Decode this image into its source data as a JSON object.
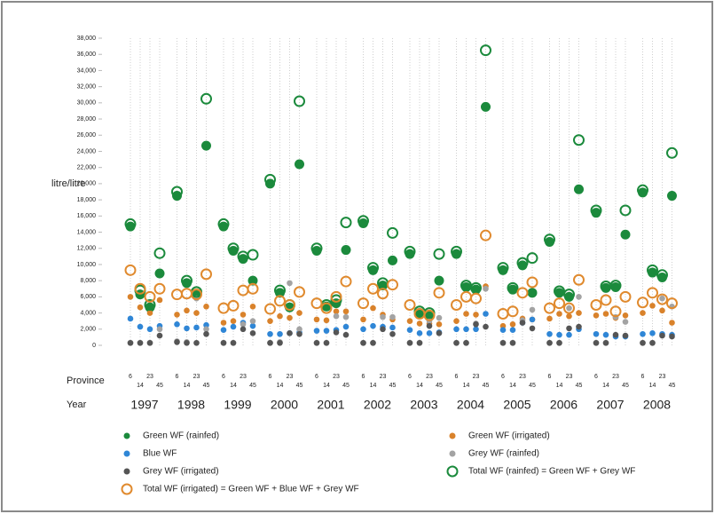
{
  "chart_data": {
    "type": "scatter",
    "y_label": "litre/litre",
    "row_labels": [
      "Province",
      "Year"
    ],
    "years": [
      "1997",
      "1998",
      "1999",
      "2000",
      "2001",
      "2002",
      "2003",
      "2004",
      "2005",
      "2006",
      "2007",
      "2008"
    ],
    "provinces": [
      "6",
      "14",
      "23",
      "45"
    ],
    "ylim": [
      0,
      38000
    ],
    "yticks": [
      0,
      {
        "value": 2000,
        "label": "2,000"
      },
      {
        "value": 4000,
        "label": "4,000"
      },
      {
        "value": 6000,
        "label": "6,000"
      },
      {
        "value": 8000,
        "label": "8,000"
      },
      {
        "value": 10000,
        "label": "10,000"
      },
      {
        "value": 12000,
        "label": "12,000"
      },
      {
        "value": 14000,
        "label": "14,000"
      },
      {
        "value": 16000,
        "label": "16,000"
      },
      {
        "value": 18000,
        "label": "18,000"
      },
      {
        "value": 20000,
        "label": "20,000"
      },
      {
        "value": 22000,
        "label": "22,000"
      },
      {
        "value": 24000,
        "label": "24,000"
      },
      {
        "value": 26000,
        "label": "26,000"
      },
      {
        "value": 28000,
        "label": "28,000"
      },
      {
        "value": 30000,
        "label": "30,000"
      },
      {
        "value": 32000,
        "label": "32,000"
      },
      {
        "value": 34000,
        "label": "34,000"
      },
      {
        "value": 36000,
        "label": "36,000"
      },
      {
        "value": 38000,
        "label": "38,000"
      }
    ],
    "series": [
      {
        "name": "Green WF (rainfed)",
        "color": "#1b8a3c",
        "filled": true,
        "values": [
          14700,
          6300,
          4700,
          8900,
          18500,
          7700,
          6300,
          24700,
          14700,
          11700,
          10700,
          8000,
          20000,
          6500,
          4700,
          22400,
          11700,
          4800,
          5200,
          11800,
          15100,
          9300,
          7400,
          10500,
          11300,
          4000,
          3800,
          8000,
          11300,
          7200,
          6900,
          29500,
          9300,
          6900,
          9900,
          6500,
          12800,
          6500,
          6000,
          19300,
          16400,
          7100,
          7200,
          13700,
          18900,
          9000,
          8400,
          18500
        ]
      },
      {
        "name": "Green WF (irrigated)",
        "color": "#d9822b",
        "filled": true,
        "values": [
          6000,
          4700,
          4000,
          5600,
          3800,
          4300,
          4000,
          4800,
          2800,
          3000,
          3800,
          4800,
          3000,
          3600,
          3400,
          4000,
          3200,
          3100,
          4200,
          4200,
          3200,
          4600,
          3800,
          3200,
          3000,
          2700,
          2700,
          2600,
          3000,
          3900,
          3800,
          7300,
          2400,
          2600,
          3300,
          3200,
          3300,
          3900,
          3600,
          4000,
          3700,
          3900,
          3400,
          3700,
          4000,
          4900,
          4300,
          2800
        ]
      },
      {
        "name": "Blue WF",
        "color": "#2f86d6",
        "filled": true,
        "values": [
          3300,
          2300,
          2000,
          2400,
          2600,
          2100,
          2200,
          2500,
          1900,
          2300,
          2800,
          2400,
          1400,
          1400,
          1500,
          1600,
          1800,
          1800,
          1900,
          2300,
          2000,
          2400,
          2300,
          2200,
          1900,
          1500,
          1500,
          1600,
          2000,
          2000,
          2000,
          3900,
          1900,
          1900,
          2800,
          3200,
          1400,
          1300,
          1300,
          2000,
          1400,
          1300,
          1100,
          1100,
          1400,
          1500,
          1400,
          1300
        ]
      },
      {
        "name": "Grey WF (rainfed)",
        "color": "#a3a3a3",
        "filled": true,
        "values": [
          300,
          300,
          300,
          2000,
          500,
          400,
          5800,
          2000,
          300,
          300,
          2600,
          3000,
          300,
          400,
          7700,
          2000,
          300,
          300,
          3600,
          3500,
          300,
          300,
          3500,
          3500,
          300,
          300,
          3000,
          3400,
          300,
          300,
          2700,
          7000,
          300,
          300,
          3100,
          4400,
          300,
          300,
          4600,
          6000,
          300,
          300,
          3500,
          2900,
          300,
          300,
          5800,
          4800
        ]
      },
      {
        "name": "Grey WF (irrigated)",
        "color": "#555555",
        "filled": true,
        "values": [
          300,
          300,
          300,
          1200,
          400,
          300,
          300,
          1400,
          300,
          300,
          2000,
          1500,
          300,
          300,
          1500,
          1400,
          300,
          300,
          1600,
          1300,
          300,
          300,
          2000,
          1400,
          300,
          300,
          2400,
          1500,
          300,
          300,
          2600,
          2300,
          300,
          300,
          2800,
          2100,
          300,
          300,
          2100,
          2300,
          300,
          300,
          1300,
          1200,
          300,
          300,
          1200,
          1100
        ]
      },
      {
        "name": "Total WF (rainfed) = Green WF + Grey WF",
        "color": "#1b8a3c",
        "filled": false,
        "values": [
          15000,
          6800,
          5000,
          11400,
          19000,
          8000,
          6600,
          30500,
          15000,
          12000,
          11000,
          11200,
          20500,
          6800,
          5000,
          30200,
          12000,
          5000,
          5600,
          15200,
          15400,
          9600,
          7700,
          13900,
          11600,
          4200,
          4000,
          11300,
          11600,
          7400,
          7100,
          36500,
          9600,
          7100,
          10200,
          10800,
          13100,
          6700,
          6300,
          25400,
          16700,
          7300,
          7400,
          16700,
          19200,
          9300,
          8700,
          23800
        ]
      },
      {
        "name": "Total WF (irrigated) = Green WF + Blue WF + Grey WF",
        "color": "#e08a2e",
        "filled": false,
        "values": [
          9300,
          7000,
          6000,
          7000,
          6300,
          6400,
          6300,
          8800,
          4600,
          4900,
          6800,
          7000,
          4500,
          5500,
          5000,
          6600,
          5200,
          4600,
          6000,
          7900,
          5200,
          7000,
          6400,
          7500,
          5000,
          3900,
          3700,
          6500,
          5000,
          6000,
          5800,
          13600,
          3900,
          4200,
          6500,
          7800,
          4600,
          5200,
          4600,
          8100,
          5000,
          5600,
          4200,
          6000,
          5300,
          6500,
          5700,
          5200
        ]
      }
    ]
  }
}
